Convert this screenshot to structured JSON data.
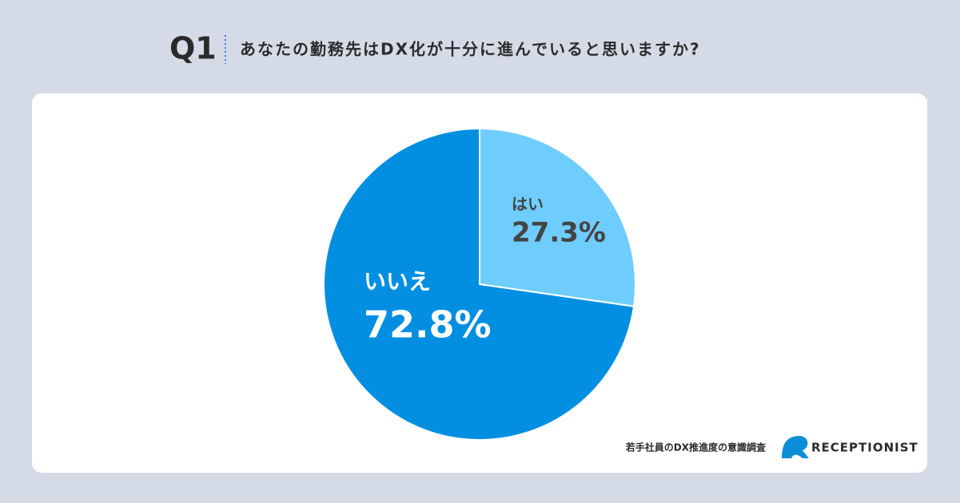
{
  "chart_data": {
    "type": "pie",
    "question": "Q1",
    "title": "あなたの勤務先はDX化が十分に進んでいると思いますか?",
    "categories": [
      "はい",
      "いいえ"
    ],
    "values": [
      27.3,
      72.8
    ],
    "value_labels": [
      "27.3%",
      "72.8%"
    ],
    "colors": [
      "#6fcdfd",
      "#028fe2"
    ],
    "source": "若手社員のDX推進度の意識調査",
    "brand": "RECEPTIONIST"
  }
}
